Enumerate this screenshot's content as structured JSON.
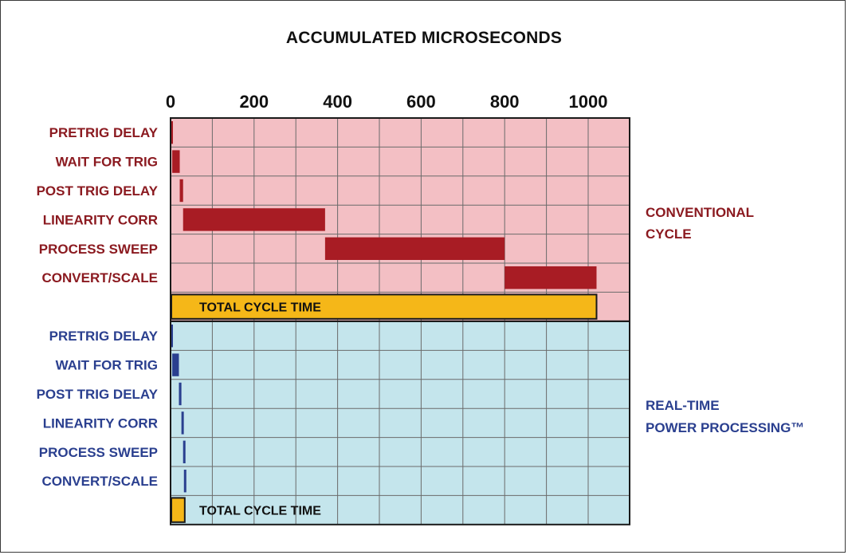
{
  "chart_data": {
    "type": "bar",
    "subtype": "gantt",
    "title": "ACCUMULATED MICROSECONDS",
    "xlim": [
      0,
      1100
    ],
    "x_ticks": [
      0,
      200,
      400,
      600,
      800,
      1000
    ],
    "x_tick_labels": [
      "0",
      "200",
      "400",
      "600",
      "800",
      "1000"
    ],
    "grid": true,
    "colors": {
      "conventional_bg": "#f3bfc4",
      "conventional_bar": "#a81c24",
      "conventional_text": "#8b1a20",
      "realtime_bg": "#c4e5ec",
      "realtime_bar": "#2a3f8f",
      "realtime_text": "#2a3f8f",
      "total_bar": "#f5b718",
      "grid": "#6b6b6b"
    },
    "panels": [
      {
        "name": "conventional",
        "side_label": [
          "CONVENTIONAL",
          "CYCLE"
        ],
        "tasks": [
          {
            "label": "PRETRIG DELAY",
            "start": 0,
            "end": 4
          },
          {
            "label": "WAIT FOR TRIG",
            "start": 4,
            "end": 22
          },
          {
            "label": "POST TRIG DELAY",
            "start": 22,
            "end": 30
          },
          {
            "label": "LINEARITY CORR",
            "start": 30,
            "end": 370
          },
          {
            "label": "PROCESS SWEEP",
            "start": 370,
            "end": 800
          },
          {
            "label": "CONVERT/SCALE",
            "start": 800,
            "end": 1020
          }
        ],
        "total": {
          "label": "TOTAL CYCLE TIME",
          "start": 0,
          "end": 1020
        }
      },
      {
        "name": "realtime",
        "side_label": [
          "REAL-TIME",
          "POWER PROCESSING™"
        ],
        "tasks": [
          {
            "label": "PRETRIG DELAY",
            "start": 0,
            "end": 4
          },
          {
            "label": "WAIT FOR TRIG",
            "start": 4,
            "end": 20
          },
          {
            "label": "POST TRIG DELAY",
            "start": 20,
            "end": 26
          },
          {
            "label": "LINEARITY CORR",
            "start": 26,
            "end": 30
          },
          {
            "label": "PROCESS SWEEP",
            "start": 30,
            "end": 32
          },
          {
            "label": "CONVERT/SCALE",
            "start": 32,
            "end": 34
          }
        ],
        "total": {
          "label": "TOTAL CYCLE TIME",
          "start": 0,
          "end": 34
        }
      }
    ]
  }
}
